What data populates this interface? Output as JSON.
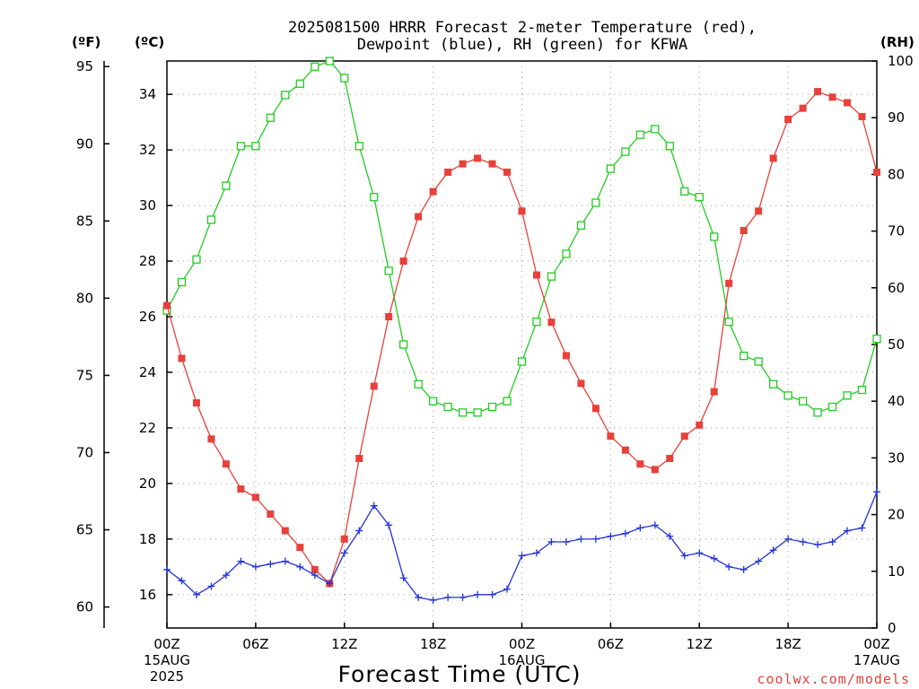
{
  "chart_data": {
    "type": "line",
    "title_line1": "2025081500 HRRR Forecast 2-meter Temperature (red),",
    "title_line2": "Dewpoint (blue), RH (green) for KFWA",
    "xlabel": "Forecast Time (UTC)",
    "credit": "coolwx.com/models",
    "y_units": {
      "fahrenheit": "(ºF)",
      "celsius": "(ºC)",
      "rh": "(RH)"
    },
    "x_ticks": [
      {
        "hour": 0,
        "label": "00Z",
        "sub1": "15AUG",
        "sub2": "2025"
      },
      {
        "hour": 6,
        "label": "06Z"
      },
      {
        "hour": 12,
        "label": "12Z"
      },
      {
        "hour": 18,
        "label": "18Z"
      },
      {
        "hour": 24,
        "label": "00Z",
        "sub1": "16AUG"
      },
      {
        "hour": 30,
        "label": "06Z"
      },
      {
        "hour": 36,
        "label": "12Z"
      },
      {
        "hour": 42,
        "label": "18Z"
      },
      {
        "hour": 48,
        "label": "00Z",
        "sub1": "17AUG"
      }
    ],
    "xlim": [
      0,
      48
    ],
    "y_celsius": {
      "range": [
        14.8,
        35.2
      ],
      "ticks": [
        16,
        18,
        20,
        22,
        24,
        26,
        28,
        30,
        32,
        34
      ]
    },
    "y_fahrenheit": {
      "ticks": [
        60,
        65,
        70,
        75,
        80,
        85,
        90,
        95
      ]
    },
    "y_rh": {
      "range": [
        0,
        100
      ],
      "ticks": [
        0,
        10,
        20,
        30,
        40,
        50,
        60,
        70,
        80,
        90,
        100
      ]
    },
    "grid": true,
    "colors": {
      "temperature": "#e8403a",
      "dewpoint": "#2233dd",
      "rh": "#22cc22"
    },
    "x": [
      0,
      1,
      2,
      3,
      4,
      5,
      6,
      7,
      8,
      9,
      10,
      11,
      12,
      13,
      14,
      15,
      16,
      17,
      18,
      19,
      20,
      21,
      22,
      23,
      24,
      25,
      26,
      27,
      28,
      29,
      30,
      31,
      32,
      33,
      34,
      35,
      36,
      37,
      38,
      39,
      40,
      41,
      42,
      43,
      44,
      45,
      46,
      47,
      48
    ],
    "series": [
      {
        "key": "temperature",
        "axis": "celsius",
        "marker": "filled-square",
        "values": [
          26.4,
          24.5,
          22.9,
          21.6,
          20.7,
          19.8,
          19.5,
          18.9,
          18.3,
          17.7,
          16.9,
          16.4,
          18.0,
          20.9,
          23.5,
          26.0,
          28.0,
          29.6,
          30.5,
          31.2,
          31.5,
          31.7,
          31.5,
          31.2,
          29.8,
          27.5,
          25.8,
          24.6,
          23.6,
          22.7,
          21.7,
          21.2,
          20.7,
          20.5,
          20.9,
          21.7,
          22.1,
          23.3,
          27.2,
          29.1,
          29.8,
          31.7,
          33.1,
          33.5,
          34.1,
          33.9,
          33.7,
          33.2,
          31.2
        ]
      },
      {
        "key": "dewpoint",
        "axis": "celsius",
        "marker": "plus",
        "values": [
          16.9,
          16.5,
          16.0,
          16.3,
          16.7,
          17.2,
          17.0,
          17.1,
          17.2,
          17.0,
          16.7,
          16.4,
          17.5,
          18.3,
          19.2,
          18.5,
          16.6,
          15.9,
          15.8,
          15.9,
          15.9,
          16.0,
          16.0,
          16.2,
          17.4,
          17.5,
          17.9,
          17.9,
          18.0,
          18.0,
          18.1,
          18.2,
          18.4,
          18.5,
          18.1,
          17.4,
          17.5,
          17.3,
          17.0,
          16.9,
          17.2,
          17.6,
          18.0,
          17.9,
          17.8,
          17.9,
          18.3,
          18.4,
          19.7
        ]
      },
      {
        "key": "rh",
        "axis": "rh",
        "marker": "open-square",
        "values": [
          56,
          61,
          65,
          72,
          78,
          85,
          85,
          90,
          94,
          96,
          99,
          100,
          97,
          85,
          76,
          63,
          50,
          43,
          40,
          39,
          38,
          38,
          39,
          40,
          47,
          54,
          62,
          66,
          71,
          75,
          81,
          84,
          87,
          88,
          85,
          77,
          76,
          69,
          54,
          48,
          47,
          43,
          41,
          40,
          38,
          39,
          41,
          42,
          51
        ]
      }
    ]
  }
}
